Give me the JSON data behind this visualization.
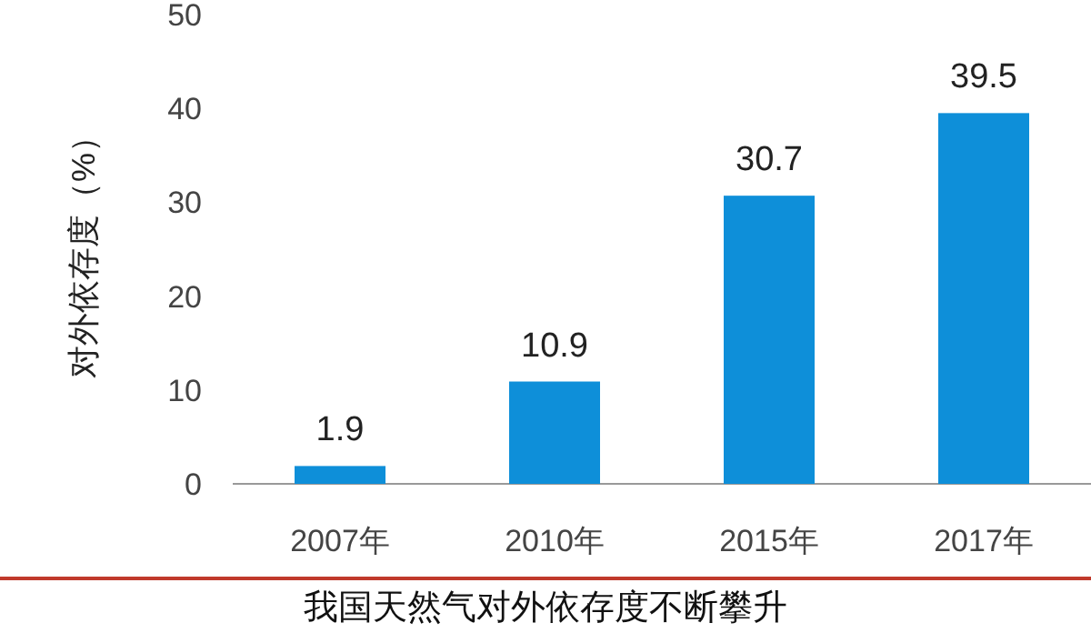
{
  "chart_data": {
    "type": "bar",
    "title": "我国天然气对外依存度不断攀升",
    "ylabel": "对外依存度（%）",
    "categories": [
      "2007年",
      "2010年",
      "2015年",
      "2017年"
    ],
    "values": [
      1.9,
      10.9,
      30.7,
      39.5
    ],
    "color": "#0e8fd9",
    "ylim": [
      0,
      50
    ],
    "yticks": [
      0,
      10,
      20,
      30,
      40,
      50
    ],
    "data_labels": true,
    "grid": false
  }
}
